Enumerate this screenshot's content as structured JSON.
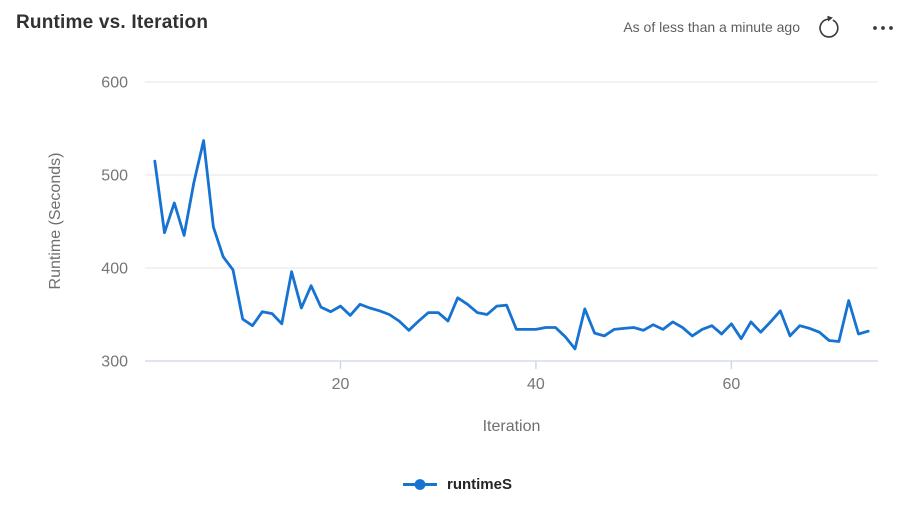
{
  "header": {
    "title": "Runtime vs. Iteration",
    "status_text": "As of less than a minute ago",
    "refresh_icon": "refresh-icon",
    "more_icon": "ellipsis-icon"
  },
  "colors": {
    "line": "#1673d2",
    "grid": "#e6e6e6",
    "axis": "#c9d3ea",
    "tick_label": "#767676",
    "axis_title": "#6f6f6f",
    "title": "#323130",
    "status": "#605e5c",
    "icon": "#3b3a39",
    "legend_label": "#252423"
  },
  "chart_data": {
    "type": "line",
    "title": "Runtime vs. Iteration",
    "xlabel": "Iteration",
    "ylabel": "Runtime (Seconds)",
    "xlim": [
      0,
      75
    ],
    "ylim": [
      300,
      600
    ],
    "x_ticks": [
      20,
      40,
      60
    ],
    "y_ticks": [
      300,
      400,
      500,
      600
    ],
    "grid": "horizontal",
    "legend": {
      "position": "bottom",
      "entries": [
        {
          "label": "runtimeS",
          "color": "#1673d2",
          "marker": "circle-on-line"
        }
      ]
    },
    "series": [
      {
        "name": "runtimeS",
        "x": [
          1,
          2,
          3,
          4,
          5,
          6,
          7,
          8,
          9,
          10,
          11,
          12,
          13,
          14,
          15,
          16,
          17,
          18,
          19,
          20,
          21,
          22,
          23,
          24,
          25,
          26,
          27,
          28,
          29,
          30,
          31,
          32,
          33,
          34,
          35,
          36,
          37,
          38,
          39,
          40,
          41,
          42,
          43,
          44,
          45,
          46,
          47,
          48,
          49,
          50,
          51,
          52,
          53,
          54,
          55,
          56,
          57,
          58,
          59,
          60,
          61,
          62,
          63,
          64,
          65,
          66,
          67,
          68,
          69,
          70,
          71,
          72,
          73,
          74
        ],
        "values": [
          515,
          438,
          470,
          435,
          492,
          537,
          444,
          412,
          398,
          345,
          338,
          353,
          351,
          340,
          396,
          357,
          381,
          358,
          353,
          359,
          349,
          361,
          357,
          354,
          350,
          343,
          333,
          343,
          352,
          352,
          343,
          368,
          361,
          352,
          350,
          359,
          360,
          334,
          334,
          334,
          336,
          336,
          326,
          313,
          356,
          330,
          327,
          334,
          335,
          336,
          333,
          339,
          334,
          342,
          336,
          327,
          334,
          338,
          329,
          340,
          324,
          342,
          331,
          342,
          354,
          327,
          338,
          335,
          331,
          322,
          321,
          365,
          329,
          332
        ]
      }
    ]
  }
}
